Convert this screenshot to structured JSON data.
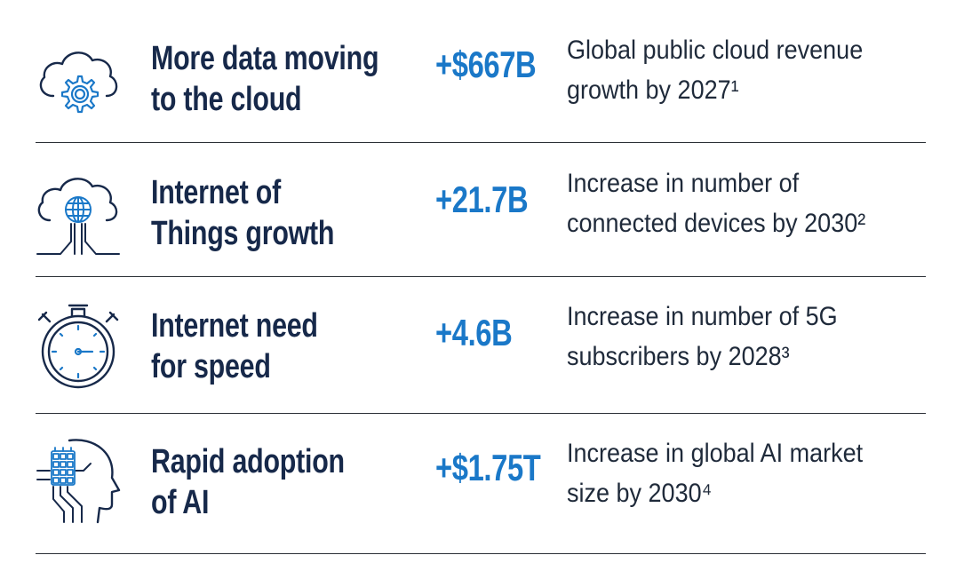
{
  "colors": {
    "title": "#17294a",
    "stat": "#1a78c8",
    "icon_navy": "#17294a",
    "icon_blue": "#1a78c8",
    "divider": "#2a2f36"
  },
  "rows": [
    {
      "icon": "cloud-gear-icon",
      "title_line1": "More data moving",
      "title_line2": "to the cloud",
      "stat": "+$667B",
      "desc_line1": "Global public cloud revenue",
      "desc_line2": "growth by 2027¹"
    },
    {
      "icon": "cloud-globe-network-icon",
      "title_line1": "Internet of",
      "title_line2": "Things growth",
      "stat": "+21.7B",
      "desc_line1": "Increase in number of",
      "desc_line2": "connected devices by 2030²"
    },
    {
      "icon": "stopwatch-icon",
      "title_line1": "Internet need",
      "title_line2": "for speed",
      "stat": "+4.6B",
      "desc_line1": "Increase in number of 5G",
      "desc_line2": "subscribers by 2028³"
    },
    {
      "icon": "ai-head-chip-icon",
      "title_line1": "Rapid adoption",
      "title_line2": "of AI",
      "stat": "+$1.75T",
      "desc_line1": "Increase in global AI market",
      "desc_line2": "size by 2030⁴"
    }
  ]
}
